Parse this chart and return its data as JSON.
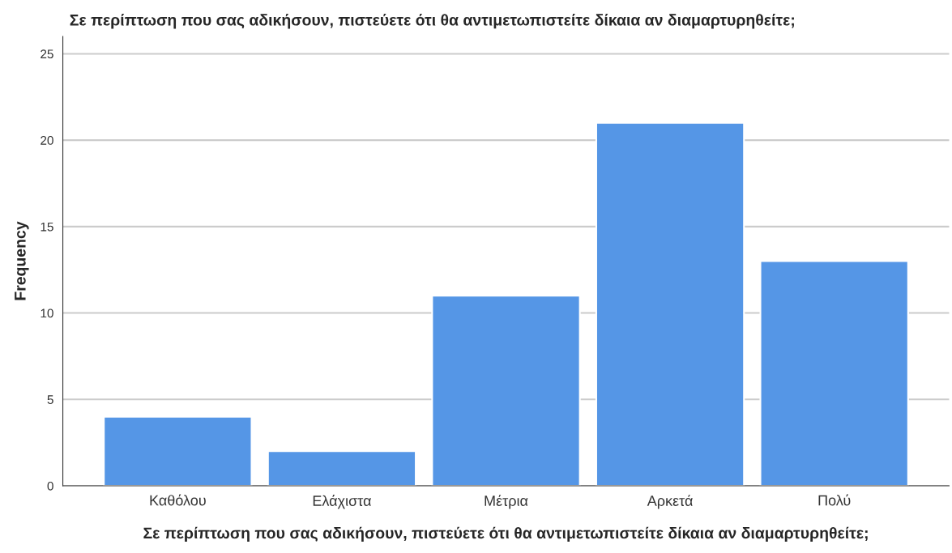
{
  "chart_data": {
    "type": "bar",
    "title": "Σε περίπτωση που σας αδικήσουν, πιστεύετε ότι θα αντιμετωπιστείτε δίκαια αν διαμαρτυρηθείτε;",
    "xlabel": "Σε περίπτωση που σας αδικήσουν, πιστεύετε ότι θα αντιμετωπιστείτε δίκαια αν διαμαρτυρηθείτε;",
    "ylabel": "Frequency",
    "categories": [
      "Καθόλου",
      "Ελάχιστα",
      "Μέτρια",
      "Αρκετά",
      "Πολύ"
    ],
    "values": [
      4,
      2,
      11,
      21,
      13
    ],
    "color": "#5596e6",
    "ylim": [
      0,
      26
    ],
    "yticks": [
      0,
      5,
      10,
      15,
      20,
      25
    ],
    "grid": "y"
  }
}
